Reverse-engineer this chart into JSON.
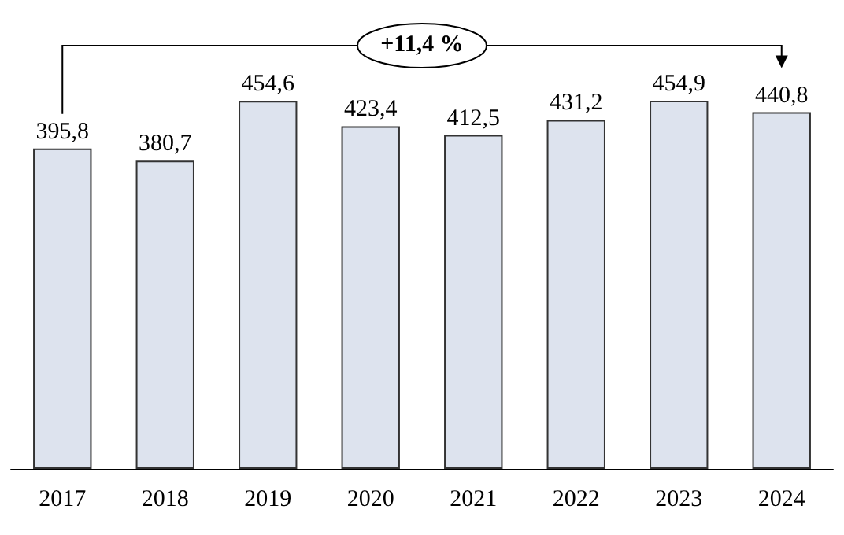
{
  "chart_data": {
    "type": "bar",
    "categories": [
      "2017",
      "2018",
      "2019",
      "2020",
      "2021",
      "2022",
      "2023",
      "2024"
    ],
    "values": [
      395.8,
      380.7,
      454.6,
      423.4,
      412.5,
      431.2,
      454.9,
      440.8
    ],
    "value_labels": [
      "395,8",
      "380,7",
      "454,6",
      "423,4",
      "412,5",
      "431,2",
      "454,9",
      "440,8"
    ],
    "color": "#dde3ee",
    "annotations": [
      "+11,4 %"
    ]
  }
}
